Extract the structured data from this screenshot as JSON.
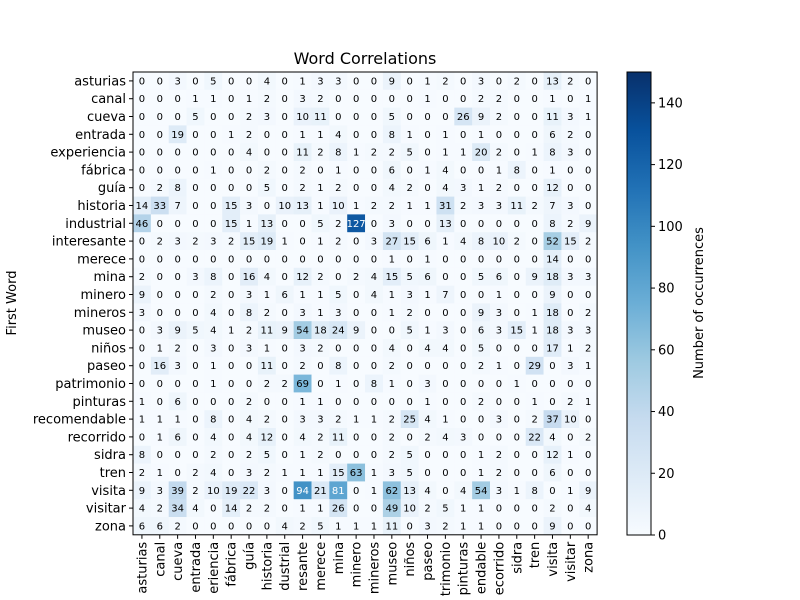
{
  "chart_data": {
    "type": "heatmap",
    "title": "Word Correlations",
    "ylabel": "First Word",
    "xlabel": "",
    "colorbar_label": "Number of occurrences",
    "colorbar_ticks": [
      0,
      20,
      40,
      60,
      80,
      100,
      120,
      140
    ],
    "vmin": 0,
    "vmax": 150,
    "colormap": "Blues",
    "rows": [
      "asturias",
      "canal",
      "cueva",
      "entrada",
      "experiencia",
      "fábrica",
      "guía",
      "historia",
      "industrial",
      "interesante",
      "merece",
      "mina",
      "minero",
      "mineros",
      "museo",
      "niños",
      "paseo",
      "patrimonio",
      "pinturas",
      "recomendable",
      "recorrido",
      "sidra",
      "tren",
      "visita",
      "visitar",
      "zona"
    ],
    "columns": [
      "asturias",
      "canal",
      "cueva",
      "entrada",
      "eriencia",
      "fábrica",
      "guía",
      "historia",
      "dustrial",
      "resante",
      "merece",
      "mina",
      "minero",
      "mineros",
      "museo",
      "niños",
      "paseo",
      "trimonio",
      "pinturas",
      "endable",
      "ecorrido",
      "sidra",
      "tren",
      "visita",
      "visitar",
      "zona"
    ],
    "values": [
      [
        0,
        0,
        3,
        0,
        5,
        0,
        0,
        4,
        0,
        1,
        3,
        3,
        0,
        0,
        9,
        0,
        1,
        2,
        0,
        3,
        0,
        2,
        0,
        13,
        2,
        0
      ],
      [
        0,
        0,
        0,
        1,
        1,
        0,
        1,
        2,
        0,
        3,
        2,
        0,
        0,
        0,
        0,
        0,
        1,
        0,
        0,
        2,
        2,
        0,
        0,
        1,
        0,
        1
      ],
      [
        0,
        0,
        0,
        5,
        0,
        0,
        2,
        3,
        0,
        10,
        11,
        0,
        0,
        0,
        5,
        0,
        0,
        0,
        26,
        9,
        2,
        0,
        0,
        11,
        3,
        1
      ],
      [
        0,
        0,
        19,
        0,
        0,
        1,
        2,
        0,
        0,
        1,
        1,
        4,
        0,
        0,
        8,
        1,
        0,
        1,
        0,
        1,
        0,
        0,
        0,
        6,
        2,
        0
      ],
      [
        0,
        0,
        0,
        0,
        0,
        0,
        4,
        0,
        0,
        11,
        2,
        8,
        1,
        2,
        2,
        5,
        0,
        1,
        1,
        20,
        2,
        0,
        1,
        8,
        3,
        0
      ],
      [
        0,
        0,
        0,
        0,
        1,
        0,
        0,
        2,
        0,
        2,
        0,
        1,
        0,
        0,
        6,
        0,
        1,
        4,
        0,
        0,
        1,
        8,
        0,
        1,
        0,
        0
      ],
      [
        0,
        2,
        8,
        0,
        0,
        0,
        0,
        5,
        0,
        2,
        1,
        2,
        0,
        0,
        4,
        2,
        0,
        4,
        3,
        1,
        2,
        0,
        0,
        12,
        0,
        0
      ],
      [
        14,
        33,
        7,
        0,
        0,
        15,
        3,
        0,
        10,
        13,
        1,
        10,
        1,
        2,
        2,
        1,
        1,
        31,
        2,
        3,
        3,
        11,
        2,
        7,
        3,
        0
      ],
      [
        46,
        0,
        0,
        0,
        0,
        15,
        1,
        13,
        0,
        0,
        5,
        2,
        127,
        0,
        3,
        0,
        0,
        13,
        0,
        0,
        0,
        0,
        0,
        8,
        2,
        9
      ],
      [
        0,
        2,
        3,
        2,
        3,
        2,
        15,
        19,
        1,
        0,
        1,
        2,
        0,
        3,
        27,
        15,
        6,
        1,
        4,
        8,
        10,
        2,
        0,
        52,
        15,
        2
      ],
      [
        0,
        0,
        0,
        0,
        0,
        0,
        0,
        0,
        0,
        0,
        0,
        0,
        0,
        0,
        1,
        0,
        1,
        0,
        0,
        0,
        0,
        0,
        0,
        14,
        0,
        0
      ],
      [
        2,
        0,
        0,
        3,
        8,
        0,
        16,
        4,
        0,
        12,
        2,
        0,
        2,
        4,
        15,
        5,
        6,
        0,
        0,
        5,
        6,
        0,
        9,
        18,
        3,
        3
      ],
      [
        9,
        0,
        0,
        0,
        2,
        0,
        3,
        1,
        6,
        1,
        1,
        5,
        0,
        4,
        1,
        3,
        1,
        7,
        0,
        0,
        1,
        0,
        0,
        9,
        0,
        0
      ],
      [
        3,
        0,
        0,
        0,
        4,
        0,
        8,
        2,
        0,
        3,
        1,
        3,
        0,
        0,
        1,
        2,
        0,
        0,
        0,
        9,
        3,
        0,
        1,
        18,
        0,
        2
      ],
      [
        0,
        3,
        9,
        5,
        4,
        1,
        2,
        11,
        9,
        54,
        18,
        24,
        9,
        0,
        0,
        5,
        1,
        3,
        0,
        6,
        3,
        15,
        1,
        18,
        3,
        3
      ],
      [
        0,
        1,
        2,
        0,
        3,
        0,
        3,
        1,
        0,
        3,
        2,
        0,
        0,
        0,
        4,
        0,
        4,
        4,
        0,
        5,
        0,
        0,
        0,
        17,
        1,
        2
      ],
      [
        0,
        16,
        3,
        0,
        1,
        0,
        0,
        11,
        0,
        2,
        0,
        8,
        0,
        0,
        2,
        0,
        0,
        0,
        0,
        2,
        1,
        0,
        29,
        0,
        3,
        1
      ],
      [
        0,
        0,
        0,
        0,
        1,
        0,
        0,
        2,
        2,
        69,
        0,
        1,
        0,
        8,
        1,
        0,
        3,
        0,
        0,
        0,
        0,
        1,
        0,
        0,
        0,
        0
      ],
      [
        1,
        0,
        6,
        0,
        0,
        0,
        2,
        0,
        0,
        1,
        1,
        0,
        0,
        0,
        0,
        0,
        1,
        0,
        0,
        2,
        0,
        0,
        1,
        0,
        2,
        1
      ],
      [
        1,
        1,
        1,
        0,
        8,
        0,
        4,
        2,
        0,
        3,
        3,
        2,
        1,
        1,
        2,
        25,
        4,
        1,
        0,
        0,
        3,
        0,
        2,
        37,
        10,
        0
      ],
      [
        0,
        1,
        6,
        0,
        4,
        0,
        4,
        12,
        0,
        4,
        2,
        11,
        0,
        0,
        2,
        0,
        2,
        4,
        3,
        0,
        0,
        0,
        22,
        4,
        0,
        2
      ],
      [
        8,
        0,
        0,
        0,
        2,
        0,
        2,
        5,
        0,
        1,
        2,
        0,
        0,
        0,
        2,
        5,
        0,
        0,
        0,
        1,
        2,
        0,
        0,
        12,
        1,
        0
      ],
      [
        2,
        1,
        0,
        2,
        4,
        0,
        3,
        2,
        1,
        1,
        1,
        15,
        63,
        1,
        3,
        5,
        0,
        0,
        0,
        1,
        2,
        0,
        0,
        6,
        0,
        0
      ],
      [
        9,
        3,
        39,
        2,
        10,
        19,
        22,
        3,
        0,
        94,
        21,
        81,
        0,
        1,
        62,
        13,
        4,
        0,
        4,
        54,
        3,
        1,
        8,
        0,
        1,
        9
      ],
      [
        4,
        2,
        34,
        4,
        0,
        14,
        2,
        2,
        0,
        1,
        1,
        26,
        0,
        0,
        49,
        10,
        2,
        5,
        1,
        1,
        0,
        0,
        0,
        2,
        0,
        4
      ],
      [
        6,
        6,
        2,
        0,
        0,
        0,
        0,
        0,
        4,
        2,
        5,
        1,
        1,
        1,
        11,
        0,
        3,
        2,
        1,
        1,
        0,
        0,
        0,
        9,
        0,
        0
      ]
    ]
  }
}
